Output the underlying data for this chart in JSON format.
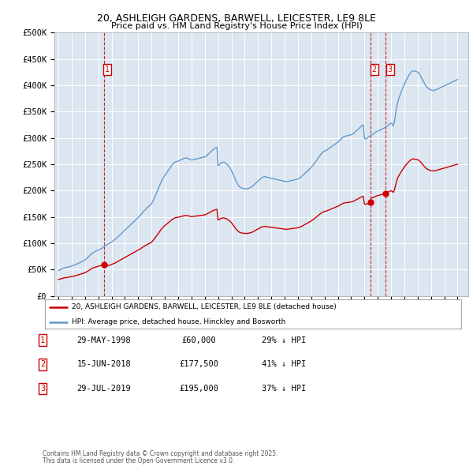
{
  "title_line1": "20, ASHLEIGH GARDENS, BARWELL, LEICESTER, LE9 8LE",
  "title_line2": "Price paid vs. HM Land Registry's House Price Index (HPI)",
  "plot_bg": "#dce6f1",
  "red_line_color": "#cc0000",
  "blue_line_color": "#6699cc",
  "annotation_box_color": "#cc0000",
  "ylim": [
    0,
    500000
  ],
  "yticks": [
    0,
    50000,
    100000,
    150000,
    200000,
    250000,
    300000,
    350000,
    400000,
    450000,
    500000
  ],
  "ytick_labels": [
    "£0",
    "£50K",
    "£100K",
    "£150K",
    "£200K",
    "£250K",
    "£300K",
    "£350K",
    "£400K",
    "£450K",
    "£500K"
  ],
  "xlim_start": 1994.7,
  "xlim_end": 2025.8,
  "xtick_years": [
    1995,
    1996,
    1997,
    1998,
    1999,
    2000,
    2001,
    2002,
    2003,
    2004,
    2005,
    2006,
    2007,
    2008,
    2009,
    2010,
    2011,
    2012,
    2013,
    2014,
    2015,
    2016,
    2017,
    2018,
    2019,
    2020,
    2021,
    2022,
    2023,
    2024,
    2025
  ],
  "hpi_x": [
    1995.0,
    1995.083,
    1995.167,
    1995.25,
    1995.333,
    1995.417,
    1995.5,
    1995.583,
    1995.667,
    1995.75,
    1995.833,
    1995.917,
    1996.0,
    1996.083,
    1996.167,
    1996.25,
    1996.333,
    1996.417,
    1996.5,
    1996.583,
    1996.667,
    1996.75,
    1996.833,
    1996.917,
    1997.0,
    1997.083,
    1997.167,
    1997.25,
    1997.333,
    1997.417,
    1997.5,
    1997.583,
    1997.667,
    1997.75,
    1997.833,
    1997.917,
    1998.0,
    1998.083,
    1998.167,
    1998.25,
    1998.333,
    1998.417,
    1998.5,
    1998.583,
    1998.667,
    1998.75,
    1998.833,
    1998.917,
    1999.0,
    1999.083,
    1999.167,
    1999.25,
    1999.333,
    1999.417,
    1999.5,
    1999.583,
    1999.667,
    1999.75,
    1999.833,
    1999.917,
    2000.0,
    2000.083,
    2000.167,
    2000.25,
    2000.333,
    2000.417,
    2000.5,
    2000.583,
    2000.667,
    2000.75,
    2000.833,
    2000.917,
    2001.0,
    2001.083,
    2001.167,
    2001.25,
    2001.333,
    2001.417,
    2001.5,
    2001.583,
    2001.667,
    2001.75,
    2001.833,
    2001.917,
    2002.0,
    2002.083,
    2002.167,
    2002.25,
    2002.333,
    2002.417,
    2002.5,
    2002.583,
    2002.667,
    2002.75,
    2002.833,
    2002.917,
    2003.0,
    2003.083,
    2003.167,
    2003.25,
    2003.333,
    2003.417,
    2003.5,
    2003.583,
    2003.667,
    2003.75,
    2003.833,
    2003.917,
    2004.0,
    2004.083,
    2004.167,
    2004.25,
    2004.333,
    2004.417,
    2004.5,
    2004.583,
    2004.667,
    2004.75,
    2004.833,
    2004.917,
    2005.0,
    2005.083,
    2005.167,
    2005.25,
    2005.333,
    2005.417,
    2005.5,
    2005.583,
    2005.667,
    2005.75,
    2005.833,
    2005.917,
    2006.0,
    2006.083,
    2006.167,
    2006.25,
    2006.333,
    2006.417,
    2006.5,
    2006.583,
    2006.667,
    2006.75,
    2006.833,
    2006.917,
    2007.0,
    2007.083,
    2007.167,
    2007.25,
    2007.333,
    2007.417,
    2007.5,
    2007.583,
    2007.667,
    2007.75,
    2007.833,
    2007.917,
    2008.0,
    2008.083,
    2008.167,
    2008.25,
    2008.333,
    2008.417,
    2008.5,
    2008.583,
    2008.667,
    2008.75,
    2008.833,
    2008.917,
    2009.0,
    2009.083,
    2009.167,
    2009.25,
    2009.333,
    2009.417,
    2009.5,
    2009.583,
    2009.667,
    2009.75,
    2009.833,
    2009.917,
    2010.0,
    2010.083,
    2010.167,
    2010.25,
    2010.333,
    2010.417,
    2010.5,
    2010.583,
    2010.667,
    2010.75,
    2010.833,
    2010.917,
    2011.0,
    2011.083,
    2011.167,
    2011.25,
    2011.333,
    2011.417,
    2011.5,
    2011.583,
    2011.667,
    2011.75,
    2011.833,
    2011.917,
    2012.0,
    2012.083,
    2012.167,
    2012.25,
    2012.333,
    2012.417,
    2012.5,
    2012.583,
    2012.667,
    2012.75,
    2012.833,
    2012.917,
    2013.0,
    2013.083,
    2013.167,
    2013.25,
    2013.333,
    2013.417,
    2013.5,
    2013.583,
    2013.667,
    2013.75,
    2013.833,
    2013.917,
    2014.0,
    2014.083,
    2014.167,
    2014.25,
    2014.333,
    2014.417,
    2014.5,
    2014.583,
    2014.667,
    2014.75,
    2014.833,
    2014.917,
    2015.0,
    2015.083,
    2015.167,
    2015.25,
    2015.333,
    2015.417,
    2015.5,
    2015.583,
    2015.667,
    2015.75,
    2015.833,
    2015.917,
    2016.0,
    2016.083,
    2016.167,
    2016.25,
    2016.333,
    2016.417,
    2016.5,
    2016.583,
    2016.667,
    2016.75,
    2016.833,
    2016.917,
    2017.0,
    2017.083,
    2017.167,
    2017.25,
    2017.333,
    2017.417,
    2017.5,
    2017.583,
    2017.667,
    2017.75,
    2017.833,
    2017.917,
    2018.0,
    2018.083,
    2018.167,
    2018.25,
    2018.333,
    2018.417,
    2018.5,
    2018.583,
    2018.667,
    2018.75,
    2018.833,
    2018.917,
    2019.0,
    2019.083,
    2019.167,
    2019.25,
    2019.333,
    2019.417,
    2019.5,
    2019.583,
    2019.667,
    2019.75,
    2019.833,
    2019.917,
    2020.0,
    2020.083,
    2020.167,
    2020.25,
    2020.333,
    2020.417,
    2020.5,
    2020.583,
    2020.667,
    2020.75,
    2020.833,
    2020.917,
    2021.0,
    2021.083,
    2021.167,
    2021.25,
    2021.333,
    2021.417,
    2021.5,
    2021.583,
    2021.667,
    2021.75,
    2021.833,
    2021.917,
    2022.0,
    2022.083,
    2022.167,
    2022.25,
    2022.333,
    2022.417,
    2022.5,
    2022.583,
    2022.667,
    2022.75,
    2022.833,
    2022.917,
    2023.0,
    2023.083,
    2023.167,
    2023.25,
    2023.333,
    2023.417,
    2023.5,
    2023.583,
    2023.667,
    2023.75,
    2023.833,
    2023.917,
    2024.0,
    2024.083,
    2024.167,
    2024.25,
    2024.333,
    2024.417,
    2024.5,
    2024.583,
    2024.667,
    2024.75,
    2024.833,
    2024.917,
    2025.0
  ],
  "hpi_y": [
    48000,
    49000,
    50000,
    51000,
    52000,
    53000,
    53500,
    54000,
    54500,
    55000,
    55500,
    56000,
    57000,
    57500,
    58000,
    59000,
    60000,
    61000,
    62000,
    63000,
    64000,
    65000,
    66000,
    67000,
    68000,
    70000,
    72000,
    74000,
    76000,
    78000,
    80000,
    82000,
    83000,
    84000,
    85000,
    86000,
    87000,
    88000,
    89000,
    90000,
    91500,
    93000,
    94500,
    96000,
    97500,
    99000,
    100000,
    101000,
    102500,
    104000,
    105500,
    107000,
    109000,
    111000,
    113000,
    115000,
    117000,
    119000,
    121000,
    123000,
    125000,
    127000,
    129000,
    131000,
    133000,
    135000,
    137000,
    139000,
    141000,
    143000,
    145000,
    147000,
    149000,
    151000,
    153500,
    156000,
    158500,
    161000,
    163000,
    165000,
    167000,
    169000,
    171000,
    173000,
    175000,
    179000,
    183000,
    188000,
    193000,
    198000,
    203000,
    208000,
    213000,
    218000,
    222000,
    226000,
    229000,
    232000,
    235000,
    238000,
    241000,
    244000,
    247000,
    250000,
    252000,
    254000,
    255000,
    255500,
    256000,
    257000,
    258000,
    259000,
    260000,
    261000,
    261500,
    262000,
    261500,
    261000,
    260000,
    259000,
    258000,
    258500,
    259000,
    259500,
    260000,
    260500,
    261000,
    261500,
    262000,
    262500,
    263000,
    263500,
    264000,
    265000,
    267000,
    269000,
    271000,
    273000,
    275000,
    277000,
    279000,
    280000,
    281000,
    282000,
    247000,
    249000,
    251000,
    253000,
    253500,
    254000,
    253000,
    252000,
    250000,
    248000,
    245000,
    242000,
    238000,
    234000,
    229000,
    224000,
    219000,
    215000,
    211000,
    208000,
    206000,
    205000,
    204500,
    204000,
    203500,
    203000,
    203500,
    204000,
    204500,
    205500,
    206500,
    208000,
    210000,
    212000,
    214000,
    216000,
    218000,
    220000,
    222000,
    224000,
    225000,
    226000,
    226500,
    226000,
    225500,
    225000,
    224500,
    224000,
    223500,
    223000,
    222500,
    222000,
    221500,
    221000,
    220500,
    220000,
    219500,
    219000,
    218500,
    218000,
    217500,
    217000,
    217000,
    217500,
    218000,
    218500,
    219000,
    219500,
    220000,
    220500,
    221000,
    221500,
    222000,
    223000,
    224500,
    226000,
    228000,
    230000,
    232000,
    234000,
    236000,
    238000,
    240000,
    242000,
    244000,
    246500,
    249000,
    252000,
    255000,
    258000,
    261000,
    264000,
    267000,
    270000,
    272000,
    274000,
    275000,
    276000,
    277000,
    278500,
    280000,
    281500,
    283000,
    284500,
    286000,
    287500,
    289000,
    290500,
    292000,
    294000,
    296000,
    298000,
    300000,
    302000,
    303000,
    303500,
    304000,
    304500,
    305000,
    305500,
    306000,
    307000,
    308500,
    310000,
    312000,
    314000,
    316000,
    318000,
    320000,
    322000,
    323500,
    324500,
    299000,
    298000,
    299500,
    301000,
    302500,
    304000,
    305000,
    306000,
    307500,
    309000,
    310500,
    312000,
    313000,
    314000,
    315000,
    316000,
    317000,
    318000,
    319000,
    320500,
    322000,
    323500,
    325000,
    327000,
    328000,
    326000,
    323000,
    331000,
    345000,
    358000,
    368000,
    375000,
    381000,
    387000,
    392000,
    397000,
    402000,
    407000,
    411000,
    415000,
    419000,
    422000,
    425000,
    427000,
    427500,
    427000,
    426500,
    426000,
    425000,
    423000,
    420000,
    416000,
    412000,
    408000,
    404000,
    400000,
    397000,
    395000,
    393500,
    392000,
    391000,
    390500,
    390000,
    390500,
    391000,
    392000,
    393000,
    394000,
    395000,
    396000,
    397000,
    398000,
    399000,
    400000,
    401000,
    402000,
    403000,
    404000,
    405000,
    406000,
    407000,
    408000,
    409000,
    410000,
    411000
  ],
  "price_paid": [
    {
      "date": 1998.41,
      "price": 60000,
      "label": "1"
    },
    {
      "date": 2018.45,
      "price": 177500,
      "label": "2"
    },
    {
      "date": 2019.58,
      "price": 195000,
      "label": "3"
    }
  ],
  "legend_entries": [
    {
      "color": "#cc0000",
      "label": "20, ASHLEIGH GARDENS, BARWELL, LEICESTER, LE9 8LE (detached house)"
    },
    {
      "color": "#6699cc",
      "label": "HPI: Average price, detached house, Hinckley and Bosworth"
    }
  ],
  "table_rows": [
    {
      "num": "1",
      "date": "29-MAY-1998",
      "price": "£60,000",
      "hpi": "29% ↓ HPI"
    },
    {
      "num": "2",
      "date": "15-JUN-2018",
      "price": "£177,500",
      "hpi": "41% ↓ HPI"
    },
    {
      "num": "3",
      "date": "29-JUL-2019",
      "price": "£195,000",
      "hpi": "37% ↓ HPI"
    }
  ],
  "footer": "Contains HM Land Registry data © Crown copyright and database right 2025.\nThis data is licensed under the Open Government Licence v3.0.",
  "vline_dates": [
    1998.41,
    2018.45,
    2019.58
  ]
}
